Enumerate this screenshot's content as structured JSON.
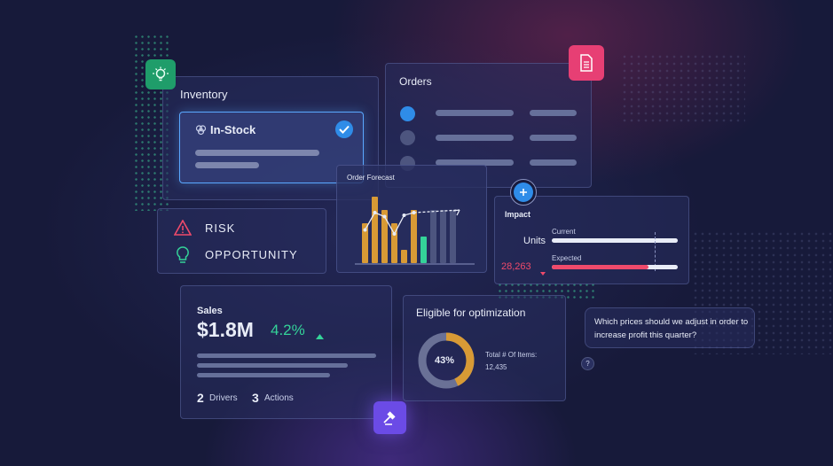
{
  "inventory": {
    "title": "Inventory",
    "in_stock": {
      "label": "In-Stock"
    }
  },
  "orders": {
    "title": "Orders"
  },
  "order_forecast": {
    "title": "Order Forecast",
    "chart_data": {
      "type": "bar",
      "series": [
        {
          "values": [
            3,
            5,
            4,
            3,
            1,
            4,
            2,
            4,
            4,
            4
          ]
        }
      ],
      "trend_line": [
        2.5,
        3.8,
        3.5,
        2.2,
        3.6,
        3.8
      ]
    }
  },
  "risk": {
    "risk_label": "RISK",
    "opportunity_label": "OPPORTUNITY"
  },
  "impact": {
    "title": "Impact",
    "units_label": "Units",
    "current_label": "Current",
    "expected_label": "Expected",
    "expected_value": "28,263",
    "current_fill": 1.0,
    "expected_fill": 0.77
  },
  "sales": {
    "title": "Sales",
    "amount": "$1.8M",
    "change": "4.2%",
    "drivers_count": "2",
    "drivers_label": "Drivers",
    "actions_count": "3",
    "actions_label": "Actions"
  },
  "optimization": {
    "title": "Eligible for optimization",
    "percent_text": "43%",
    "percent": 43,
    "total_label": "Total # Of Items:",
    "total_value": "12,435"
  },
  "chat": {
    "question": "Which prices should we adjust in order to increase profit this quarter?",
    "help_symbol": "?"
  },
  "colors": {
    "accent_blue": "#2f8ce8",
    "green": "#34d399",
    "orange": "#d89a35",
    "red": "#ef4a6b",
    "pink": "#e73f74",
    "purple": "#6b4be6"
  },
  "icons": [
    "lightbulb-icon",
    "document-icon",
    "check-icon",
    "brain-icon",
    "warning-icon",
    "bulb-icon",
    "plus-icon",
    "gavel-icon",
    "caret-up-icon",
    "caret-down-icon",
    "help-icon"
  ]
}
